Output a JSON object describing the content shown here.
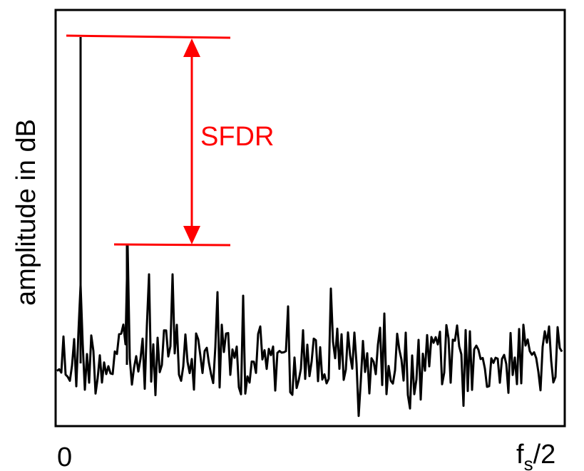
{
  "y_axis_label": "amplitude in dB",
  "x_axis": {
    "start_label": "0",
    "end_label_main": "f",
    "end_label_sub": "s",
    "end_label_tail": "/2"
  },
  "annotation": {
    "label": "SFDR",
    "color": "#ff0000"
  },
  "colors": {
    "spectrum": "#000000",
    "annotation": "#ff0000"
  }
}
